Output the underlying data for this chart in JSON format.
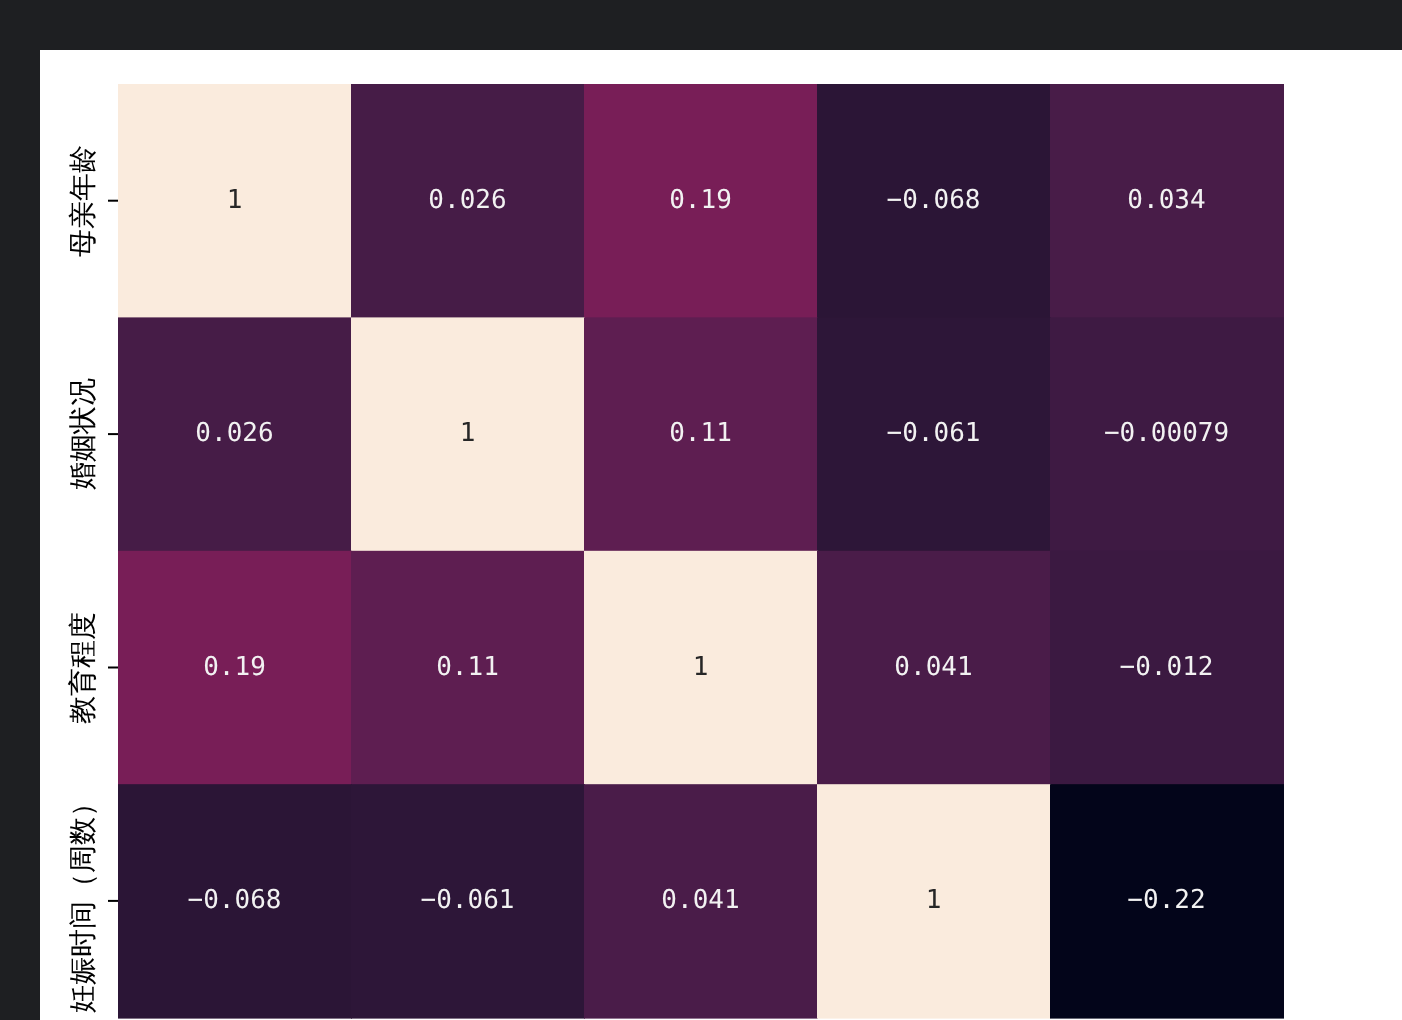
{
  "chart_data": {
    "type": "heatmap",
    "categories": [
      null,
      null,
      null,
      null,
      null
    ],
    "y_categories": [
      "母亲年龄",
      "婚姻状况",
      "教育程度",
      "妊娠时间（周数）"
    ],
    "cells": [
      [
        1,
        0.026,
        0.19,
        -0.068,
        0.034
      ],
      [
        0.026,
        1,
        0.11,
        -0.061,
        -0.00079
      ],
      [
        0.19,
        0.11,
        1,
        0.041,
        -0.012
      ],
      [
        -0.068,
        -0.061,
        0.041,
        1,
        -0.22
      ]
    ],
    "data_labels": true
  }
}
